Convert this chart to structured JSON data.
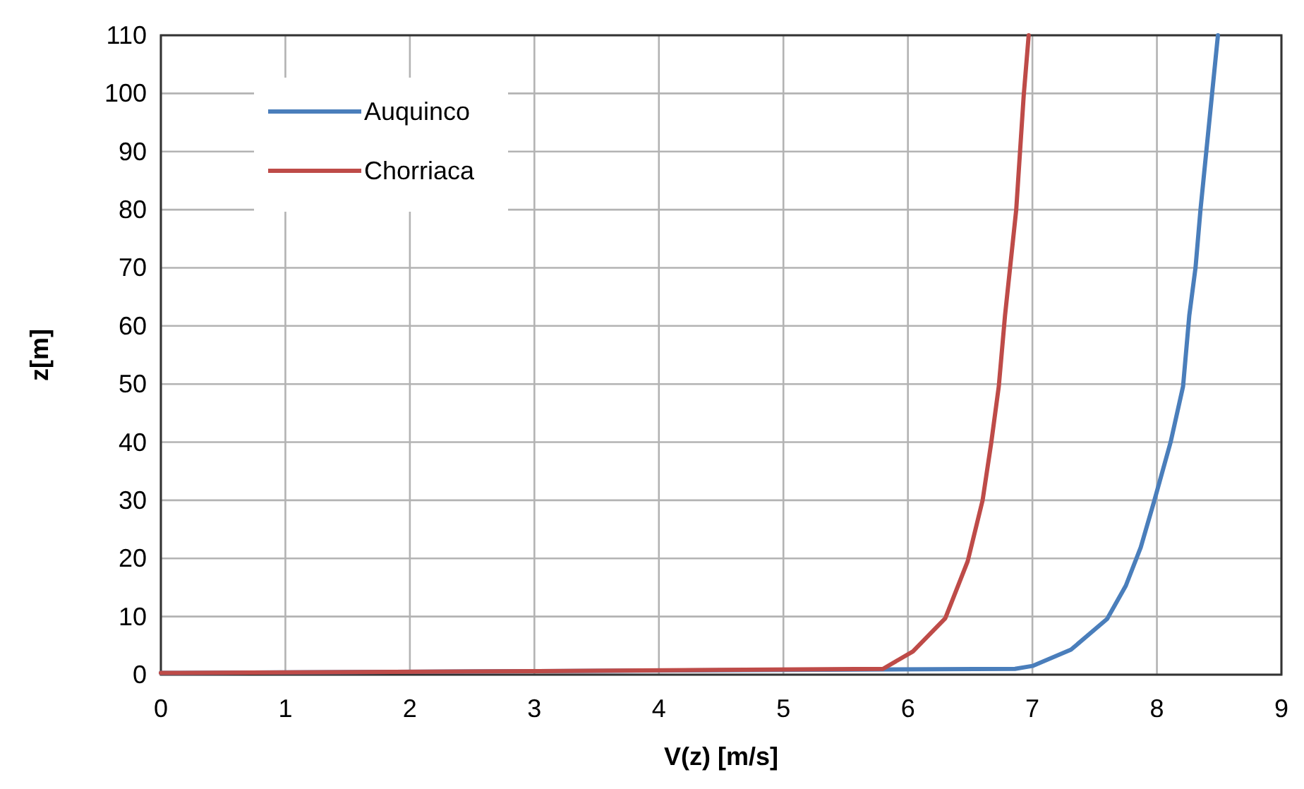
{
  "chart_data": {
    "type": "line",
    "xlabel": "V(z) [m/s]",
    "ylabel": "z[m]",
    "xlim": [
      0,
      9
    ],
    "xticks": [
      0,
      1,
      2,
      3,
      4,
      5,
      6,
      7,
      8,
      9
    ],
    "ylim": [
      0,
      110
    ],
    "yticks": [
      0,
      10,
      20,
      30,
      40,
      50,
      60,
      70,
      80,
      90,
      100,
      110
    ],
    "grid": true,
    "legend": "top left",
    "marker": "none",
    "line_style": "solid",
    "series": [
      {
        "name": "Auquinco",
        "color": "#4a7ebb",
        "x": [
          0,
          3,
          6.86,
          7.0,
          7.31,
          7.6,
          7.75,
          7.87,
          7.98,
          8.11,
          8.21,
          8.26,
          8.31,
          8.35,
          8.44,
          8.49
        ],
        "values": [
          0.3,
          0.6,
          1,
          1.5,
          4.3,
          9.6,
          15.3,
          21.9,
          30,
          40,
          49.6,
          61.8,
          70,
          80,
          99.3,
          110
        ]
      },
      {
        "name": "Chorriaca",
        "color": "#be4b48",
        "x": [
          0,
          3,
          5.8,
          6.04,
          6.3,
          6.48,
          6.6,
          6.67,
          6.73,
          6.78,
          6.87,
          6.93,
          6.97
        ],
        "values": [
          0.3,
          0.6,
          1,
          4,
          9.7,
          19.5,
          30,
          40,
          49.6,
          61.8,
          80,
          99.6,
          110
        ]
      }
    ]
  }
}
